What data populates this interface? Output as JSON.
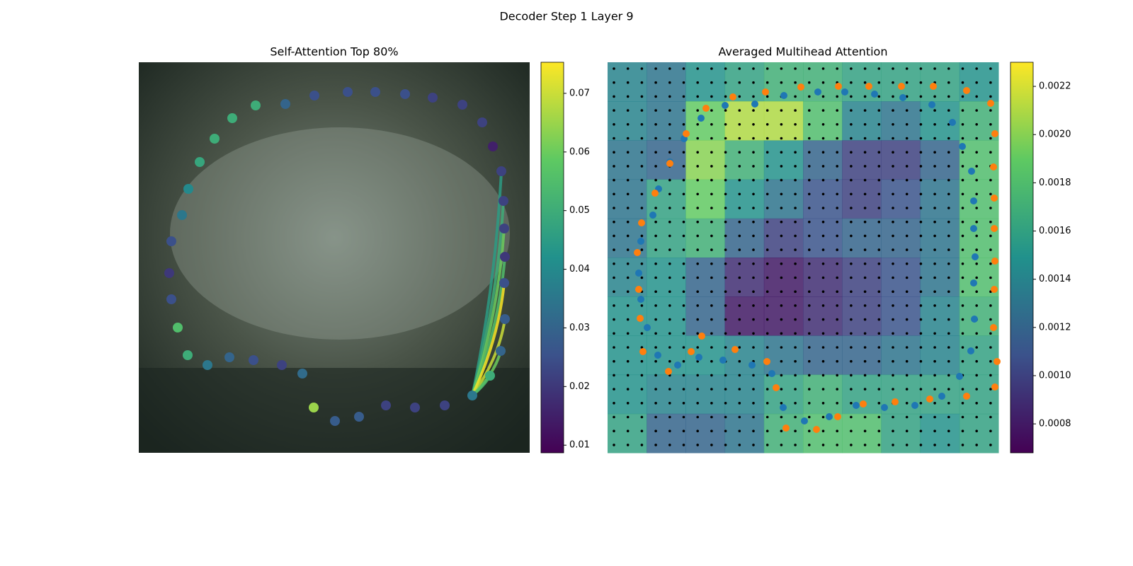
{
  "title": "Decoder Step 1 Layer 9",
  "chart_data": [
    {
      "type": "scatter",
      "title": "Self-Attention Top 80%",
      "colormap": "viridis",
      "xlim": [
        0,
        552
      ],
      "ylim": [
        552,
        0
      ],
      "x": [
        165,
        207,
        248,
        295,
        334,
        376,
        415,
        457,
        485,
        500,
        512,
        515,
        516,
        517,
        516,
        517,
        511,
        496,
        471,
        432,
        390,
        349,
        311,
        277,
        247,
        231,
        202,
        162,
        128,
        97,
        69,
        55,
        46,
        43,
        46,
        61,
        70,
        86,
        107,
        132
      ],
      "y": [
        61,
        59,
        47,
        42,
        42,
        45,
        50,
        60,
        85,
        119,
        154,
        196,
        235,
        275,
        312,
        363,
        408,
        443,
        471,
        485,
        488,
        485,
        501,
        507,
        488,
        440,
        428,
        421,
        417,
        428,
        414,
        375,
        335,
        298,
        253,
        216,
        179,
        141,
        108,
        79
      ],
      "values": [
        0.05,
        0.03,
        0.025,
        0.025,
        0.025,
        0.025,
        0.022,
        0.022,
        0.022,
        0.015,
        0.022,
        0.022,
        0.022,
        0.02,
        0.025,
        0.028,
        0.03,
        0.05,
        0.035,
        0.022,
        0.022,
        0.022,
        0.028,
        0.028,
        0.065,
        0.032,
        0.022,
        0.025,
        0.03,
        0.035,
        0.05,
        0.055,
        0.025,
        0.02,
        0.025,
        0.035,
        0.04,
        0.048,
        0.05,
        0.05
      ],
      "links": {
        "source": 18,
        "targets": [
          10,
          11,
          12,
          13,
          14,
          15,
          16,
          17
        ],
        "values": [
          0.045,
          0.05,
          0.06,
          0.055,
          0.075,
          0.07,
          0.06,
          0.055
        ]
      },
      "clim": [
        0.0087,
        0.0753
      ],
      "colorbar_ticks": [
        0.01,
        0.02,
        0.03,
        0.04,
        0.05,
        0.06,
        0.07
      ]
    },
    {
      "type": "heatmap",
      "title": "Averaged Multihead Attention",
      "colormap": "viridis",
      "xlim": [
        0,
        552
      ],
      "ylim": [
        552,
        0
      ],
      "matrix": [
        [
          0.0014,
          0.0013,
          0.0015,
          0.0016,
          0.0017,
          0.0017,
          0.0016,
          0.0016,
          0.0016,
          0.0015
        ],
        [
          0.0014,
          0.0013,
          0.0019,
          0.0021,
          0.0021,
          0.0018,
          0.0014,
          0.0013,
          0.0015,
          0.0017
        ],
        [
          0.0013,
          0.0012,
          0.002,
          0.0017,
          0.0015,
          0.0012,
          0.001,
          0.001,
          0.0012,
          0.0018
        ],
        [
          0.0013,
          0.0016,
          0.0019,
          0.0015,
          0.0013,
          0.0011,
          0.001,
          0.0011,
          0.0013,
          0.0018
        ],
        [
          0.0013,
          0.0016,
          0.0017,
          0.0012,
          0.001,
          0.0011,
          0.0012,
          0.0012,
          0.0013,
          0.0018
        ],
        [
          0.0014,
          0.0015,
          0.0012,
          0.0009,
          0.0008,
          0.0009,
          0.001,
          0.0011,
          0.0013,
          0.0018
        ],
        [
          0.0015,
          0.0015,
          0.0012,
          0.0008,
          0.0008,
          0.0009,
          0.001,
          0.0011,
          0.0014,
          0.0017
        ],
        [
          0.0015,
          0.0015,
          0.0015,
          0.0014,
          0.0013,
          0.0012,
          0.0012,
          0.0013,
          0.0014,
          0.0016
        ],
        [
          0.0015,
          0.0014,
          0.0014,
          0.0014,
          0.0016,
          0.0017,
          0.0016,
          0.0016,
          0.0016,
          0.0016
        ],
        [
          0.0016,
          0.0012,
          0.0012,
          0.0013,
          0.0017,
          0.0018,
          0.0018,
          0.0016,
          0.0015,
          0.0016
        ]
      ],
      "clim": [
        0.00068,
        0.0023
      ],
      "colorbar_ticks": [
        0.0008,
        {
          "value": 0.001,
          "label": "0.0010"
        },
        0.0012,
        0.0014,
        0.0016,
        0.0018,
        {
          "value": 0.002,
          "label": "0.0020"
        },
        0.0022
      ],
      "series": [
        {
          "color": "#1f77b4",
          "x": [
            249,
            297,
            335,
            377,
            417,
            458,
            487,
            501,
            514,
            517,
            517,
            519,
            517,
            518,
            513,
            497,
            472,
            434,
            391,
            351,
            313,
            278,
            248,
            232,
            204,
            163,
            129,
            99,
            71,
            56,
            47,
            44,
            47,
            64,
            72,
            88,
            108,
            132,
            166,
            208
          ],
          "y": [
            47,
            42,
            42,
            45,
            50,
            60,
            85,
            119,
            154,
            196,
            235,
            275,
            312,
            363,
            408,
            444,
            472,
            485,
            488,
            485,
            501,
            507,
            488,
            440,
            428,
            421,
            417,
            428,
            414,
            375,
            335,
            298,
            253,
            216,
            179,
            141,
            108,
            79,
            61,
            59
          ]
        },
        {
          "color": "#ff7f0e",
          "x": [
            223,
            273,
            326,
            369,
            415,
            460,
            507,
            541,
            547,
            545,
            546,
            546,
            547,
            546,
            545,
            550,
            547,
            507,
            455,
            406,
            361,
            325,
            295,
            252,
            238,
            225,
            180,
            118,
            133,
            86,
            50,
            46,
            44,
            42,
            48,
            67,
            88,
            111,
            139,
            177
          ],
          "y": [
            42,
            35,
            34,
            34,
            34,
            34,
            40,
            58,
            101,
            148,
            192,
            235,
            281,
            321,
            375,
            423,
            459,
            472,
            476,
            480,
            483,
            501,
            519,
            517,
            460,
            423,
            406,
            409,
            387,
            437,
            409,
            362,
            321,
            269,
            227,
            185,
            143,
            101,
            65,
            49
          ]
        }
      ]
    }
  ]
}
